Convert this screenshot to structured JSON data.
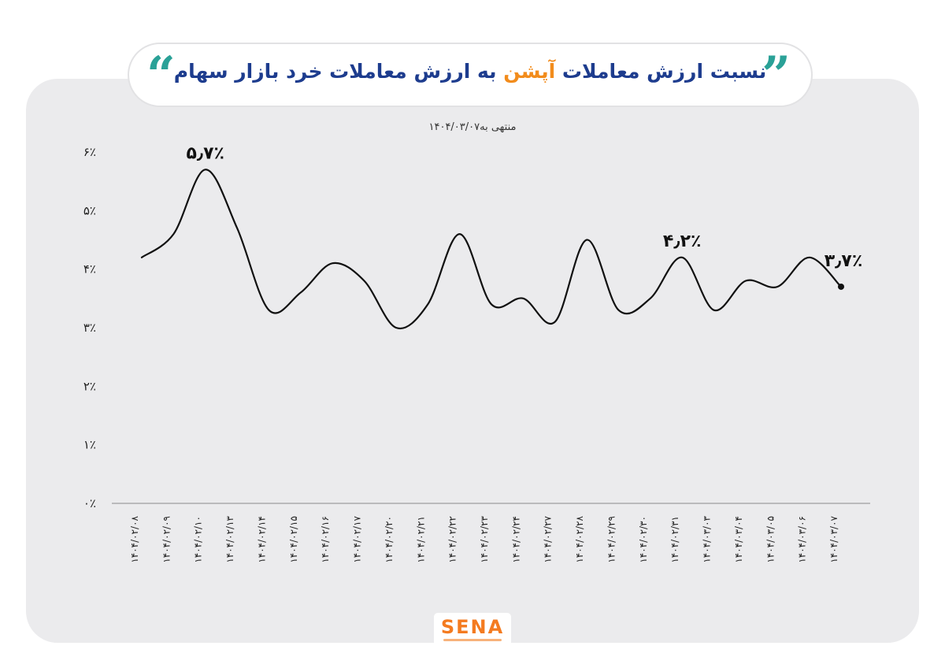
{
  "title": {
    "part1": "نسبت ارزش معاملات",
    "part2": "آپشن",
    "part3": "به ارزش معاملات خرد بازار سهام"
  },
  "subtitle": "منتهی به۱۴۰۴/۰۳/۰۷",
  "logo": "SENA",
  "colors": {
    "accent_orange": "#f28c1c",
    "title_blue": "#1d3c8e",
    "quote_teal": "#2aa197",
    "line": "#111111"
  },
  "chart_data": {
    "type": "line",
    "x": [
      "۱۴۰۴/۰۲/۰۸",
      "۱۴۰۴/۰۲/۰۹",
      "۱۴۰۴/۰۲/۱۰",
      "۱۴۰۴/۰۲/۱۳",
      "۱۴۰۴/۰۲/۱۴",
      "۱۴۰۴/۰۲/۱۵",
      "۱۴۰۴/۰۲/۱۶",
      "۱۴۰۴/۰۲/۱۷",
      "۱۴۰۴/۰۲/۲۰",
      "۱۴۰۴/۰۲/۲۱",
      "۱۴۰۴/۰۲/۲۲",
      "۱۴۰۴/۰۲/۲۳",
      "۱۴۰۴/۰۲/۲۴",
      "۱۴۰۴/۰۲/۲۷",
      "۱۴۰۴/۰۲/۲۸",
      "۱۴۰۴/۰۲/۲۹",
      "۱۴۰۴/۰۲/۳۰",
      "۱۴۰۴/۰۲/۳۱",
      "۱۴۰۴/۰۳/۰۳",
      "۱۴۰۴/۰۳/۰۴",
      "۱۴۰۴/۰۳/۰۵",
      "۱۴۰۴/۰۳/۰۶",
      "۱۴۰۴/۰۳/۰۷"
    ],
    "values": [
      4.2,
      4.6,
      5.7,
      4.7,
      3.3,
      3.6,
      4.1,
      3.8,
      3.0,
      3.4,
      4.6,
      3.4,
      3.5,
      3.1,
      4.5,
      3.3,
      3.5,
      4.2,
      3.3,
      3.8,
      3.7,
      4.2,
      3.7
    ],
    "ylim": [
      0,
      6
    ],
    "yticks": [
      "۰٪",
      "۱٪",
      "۲٪",
      "۳٪",
      "۴٪",
      "۵٪",
      "۶٪"
    ],
    "annotations": [
      {
        "index": 2,
        "text": "۵٫۷٪"
      },
      {
        "index": 17,
        "text": "۴٫۲٪"
      },
      {
        "index": 22,
        "text": "۳٫۷٪"
      }
    ],
    "grid": false,
    "title": "",
    "xlabel": "",
    "ylabel": ""
  }
}
